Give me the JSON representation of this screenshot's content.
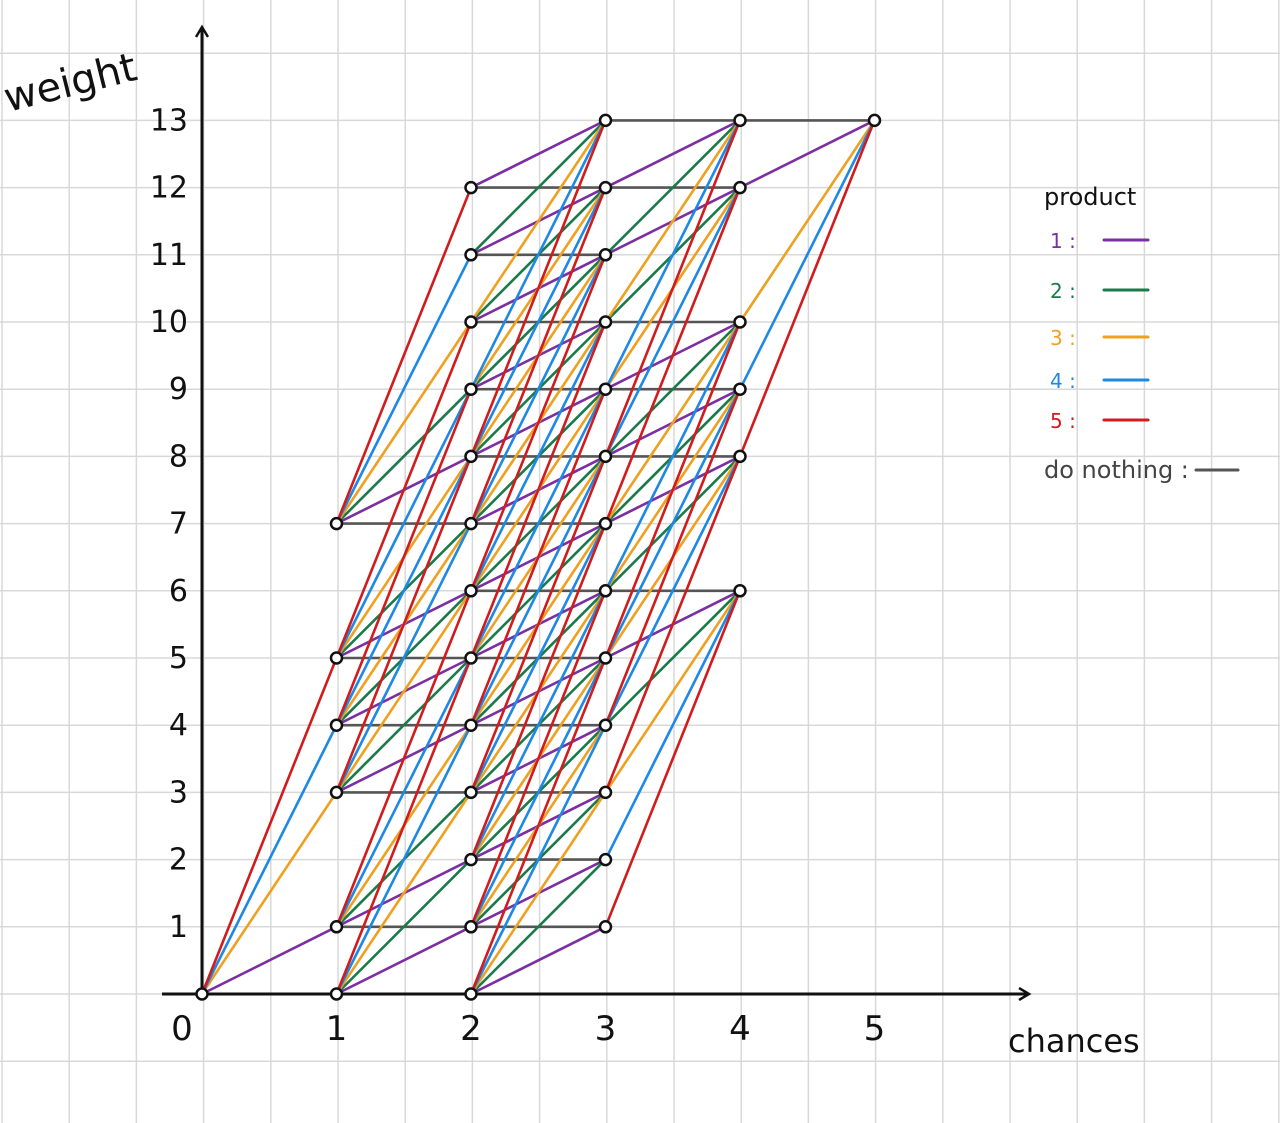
{
  "axes": {
    "y_label": "weight",
    "x_label": "chances",
    "x_ticks": [
      "0",
      "1",
      "2",
      "3",
      "4",
      "5"
    ],
    "y_ticks": [
      "1",
      "2",
      "3",
      "4",
      "5",
      "6",
      "7",
      "8",
      "9",
      "10",
      "11",
      "12",
      "13"
    ]
  },
  "legend": {
    "title": "product",
    "items": [
      {
        "label": "1 :",
        "color": "#7b2fa0",
        "weight": 1
      },
      {
        "label": "2 :",
        "color": "#1a7a4a",
        "weight": 2
      },
      {
        "label": "3 :",
        "color": "#f0a020",
        "weight": 3
      },
      {
        "label": "4 :",
        "color": "#1e88e5",
        "weight": 4
      },
      {
        "label": "5 :",
        "color": "#d01c1c",
        "weight": 5
      },
      {
        "label": "do nothing :",
        "color": "#555555",
        "weight": 0
      }
    ]
  },
  "graph": {
    "nodes": [
      {
        "x": 0,
        "ys": [
          0
        ]
      },
      {
        "x": 1,
        "ys": [
          0,
          1,
          3,
          4,
          5,
          7
        ]
      },
      {
        "x": 2,
        "ys": [
          0,
          1,
          2,
          3,
          4,
          5,
          6,
          7,
          8,
          9,
          10,
          11,
          12
        ]
      },
      {
        "x": 3,
        "ys": [
          1,
          2,
          3,
          4,
          5,
          6,
          7,
          8,
          9,
          10,
          11,
          12,
          13
        ]
      },
      {
        "x": 4,
        "ys": [
          6,
          8,
          9,
          10,
          12,
          13
        ]
      },
      {
        "x": 5,
        "ys": [
          13
        ]
      }
    ]
  }
}
